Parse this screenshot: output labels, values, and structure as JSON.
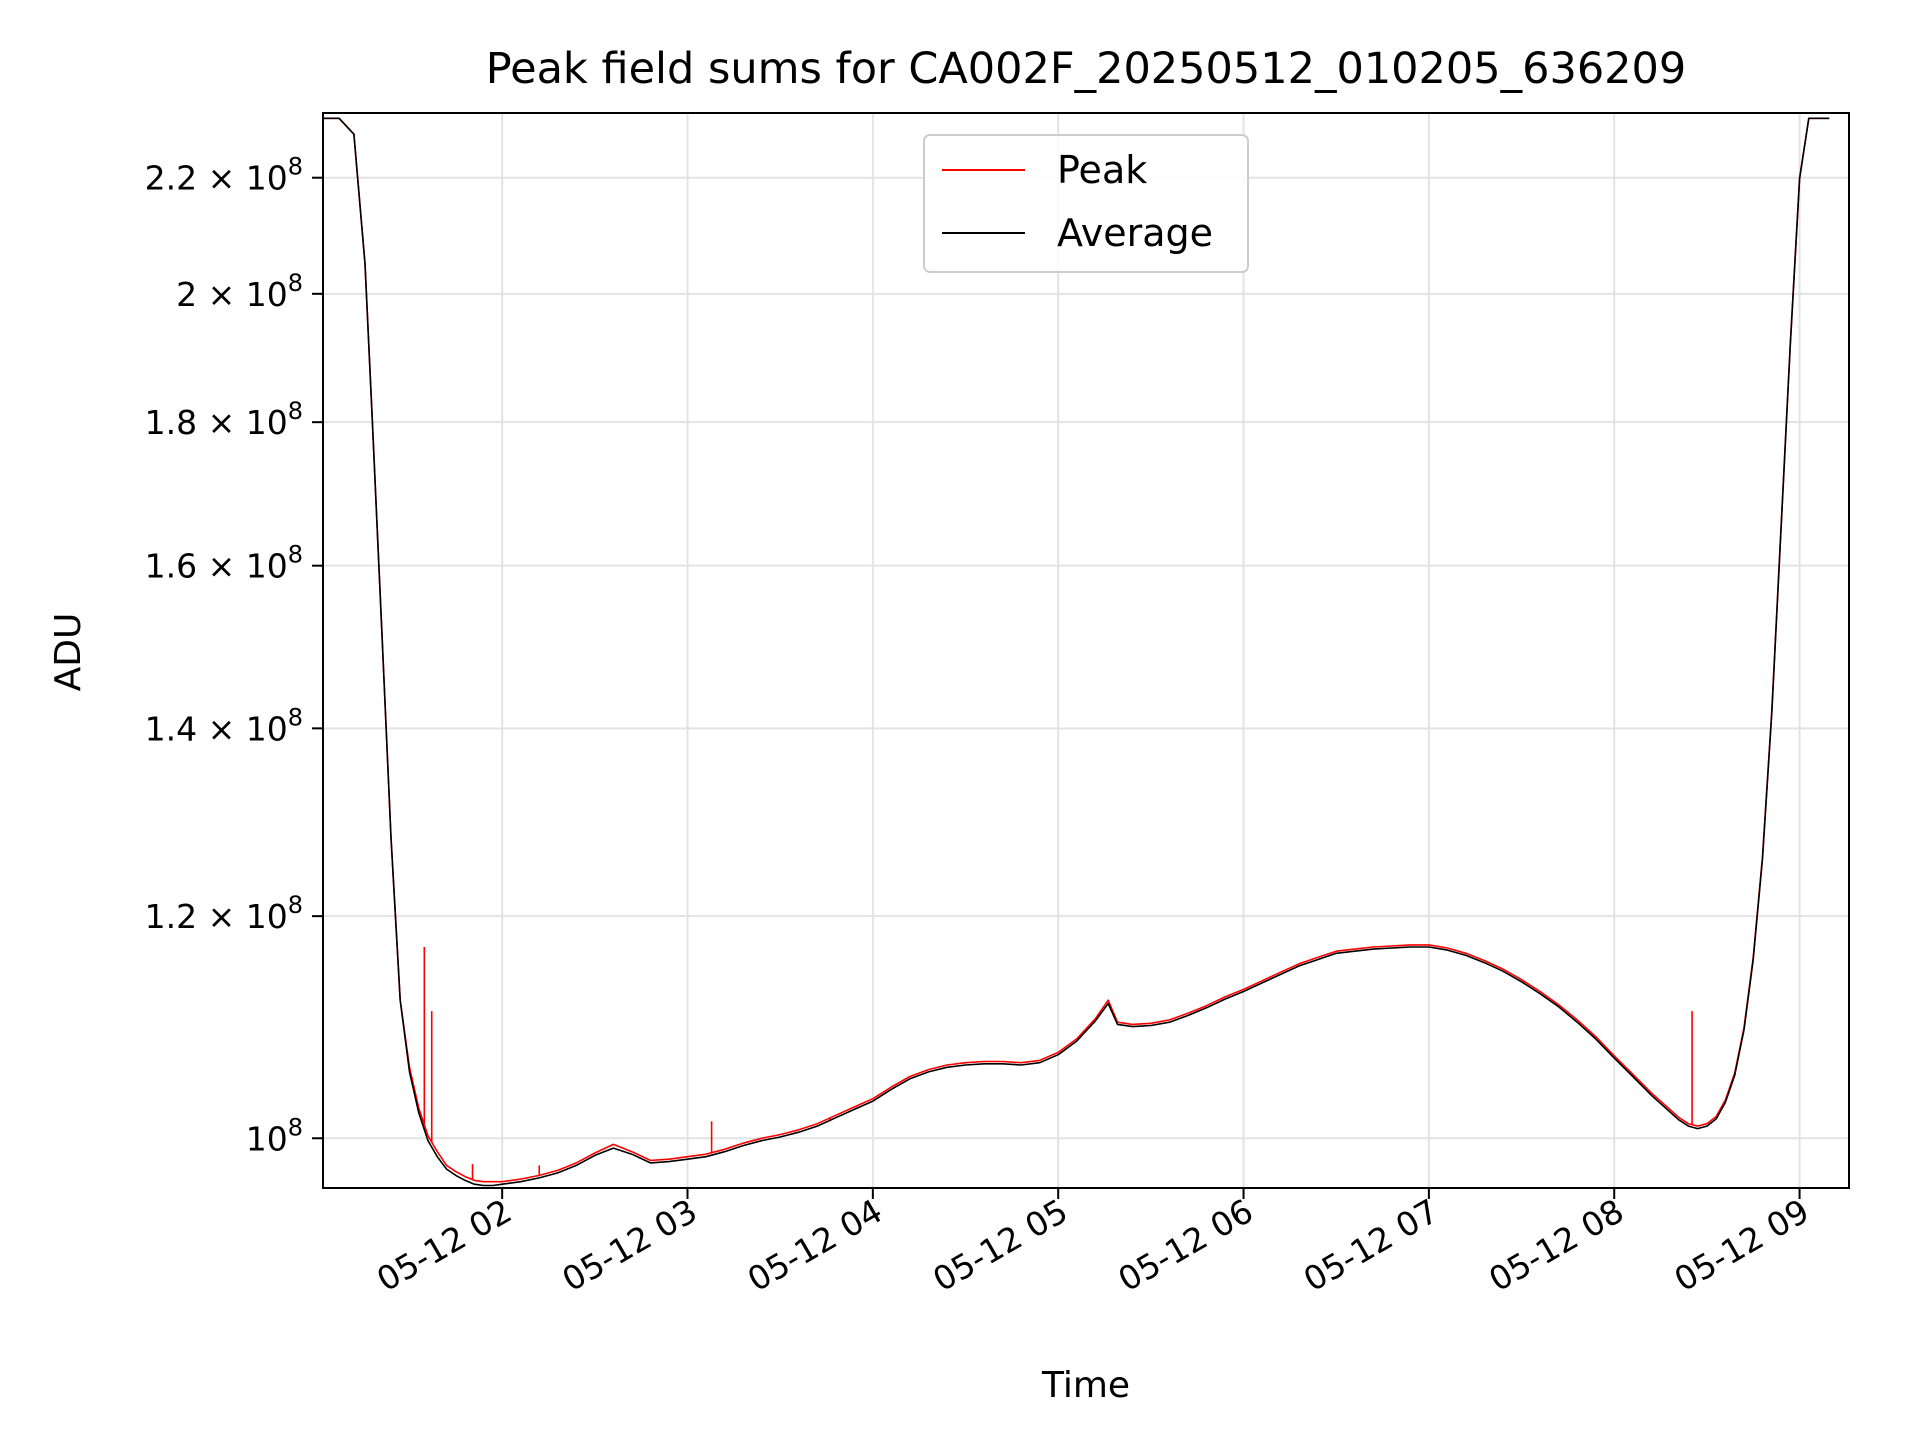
{
  "chart_data": {
    "type": "line",
    "title": "Peak field sums for CA002F_20250512_010205_636209",
    "xlabel": "Time",
    "ylabel": "ADU",
    "y_scale": "log",
    "x_range": [
      "05-12 01:02",
      "05-12 09:16"
    ],
    "ylim": [
      96000000,
      232000000
    ],
    "grid": true,
    "legend_position": "top-center",
    "x_ticks": [
      "05-12 02",
      "05-12 03",
      "05-12 04",
      "05-12 05",
      "05-12 06",
      "05-12 07",
      "05-12 08",
      "05-12 09"
    ],
    "x_tick_hours": [
      2,
      3,
      4,
      5,
      6,
      7,
      8,
      9
    ],
    "y_ticks": [
      {
        "value": 100000000,
        "mantissa": "",
        "exponent": "8",
        "base": "10"
      },
      {
        "value": 120000000,
        "mantissa": "1.2",
        "exponent": "8",
        "base": "10"
      },
      {
        "value": 140000000,
        "mantissa": "1.4",
        "exponent": "8",
        "base": "10"
      },
      {
        "value": 160000000,
        "mantissa": "1.6",
        "exponent": "8",
        "base": "10"
      },
      {
        "value": 180000000,
        "mantissa": "1.8",
        "exponent": "8",
        "base": "10"
      },
      {
        "value": 200000000,
        "mantissa": "2",
        "exponent": "8",
        "base": "10"
      },
      {
        "value": 220000000,
        "mantissa": "2.2",
        "exponent": "8",
        "base": "10"
      }
    ],
    "series": [
      {
        "name": "Peak",
        "color": "#ff0000",
        "x_hours": [
          1.03,
          1.12,
          1.2,
          1.26,
          1.3,
          1.35,
          1.4,
          1.45,
          1.5,
          1.55,
          1.6,
          1.65,
          1.7,
          1.75,
          1.8,
          1.85,
          1.9,
          1.95,
          2.0,
          2.1,
          2.2,
          2.3,
          2.4,
          2.5,
          2.6,
          2.7,
          2.8,
          2.9,
          3.0,
          3.1,
          3.2,
          3.3,
          3.4,
          3.5,
          3.6,
          3.7,
          3.8,
          3.9,
          4.0,
          4.1,
          4.2,
          4.3,
          4.4,
          4.5,
          4.6,
          4.7,
          4.8,
          4.9,
          5.0,
          5.1,
          5.2,
          5.27,
          5.32,
          5.4,
          5.5,
          5.6,
          5.7,
          5.8,
          5.9,
          6.0,
          6.1,
          6.2,
          6.3,
          6.4,
          6.5,
          6.6,
          6.7,
          6.8,
          6.9,
          7.0,
          7.1,
          7.2,
          7.3,
          7.4,
          7.5,
          7.6,
          7.7,
          7.8,
          7.9,
          8.0,
          8.1,
          8.2,
          8.3,
          8.35,
          8.4,
          8.45,
          8.5,
          8.55,
          8.6,
          8.65,
          8.7,
          8.75,
          8.8,
          8.85,
          8.9,
          8.95,
          9.0,
          9.05,
          9.08,
          9.1,
          9.16
        ],
        "values": [
          231000000,
          231000000,
          228000000,
          205000000,
          180000000,
          152000000,
          128000000,
          112000000,
          106000000,
          102500000,
          100200000,
          98900000,
          97800000,
          97300000,
          96900000,
          96600000,
          96500000,
          96500000,
          96500000,
          96700000,
          97000000,
          97400000,
          98000000,
          98800000,
          99500000,
          98900000,
          98200000,
          98300000,
          98500000,
          98700000,
          99100000,
          99600000,
          100000000,
          100300000,
          100700000,
          101200000,
          101900000,
          102600000,
          103300000,
          104300000,
          105200000,
          105800000,
          106200000,
          106400000,
          106500000,
          106500000,
          106400000,
          106600000,
          107300000,
          108500000,
          110300000,
          112000000,
          110000000,
          109800000,
          109900000,
          110200000,
          110800000,
          111500000,
          112300000,
          113000000,
          113800000,
          114600000,
          115400000,
          116000000,
          116600000,
          116800000,
          117000000,
          117100000,
          117200000,
          117200000,
          116900000,
          116400000,
          115700000,
          114900000,
          113900000,
          112800000,
          111600000,
          110200000,
          108700000,
          107000000,
          105400000,
          103800000,
          102400000,
          101700000,
          101200000,
          101000000,
          101200000,
          101800000,
          103200000,
          105500000,
          109500000,
          116000000,
          126000000,
          142000000,
          165000000,
          192000000,
          220000000,
          231000000,
          231000000,
          231000000,
          231000000
        ],
        "spikes": [
          {
            "x_hour": 1.58,
            "value": 117000000
          },
          {
            "x_hour": 1.62,
            "value": 111000000
          },
          {
            "x_hour": 1.84,
            "value": 97900000
          },
          {
            "x_hour": 2.2,
            "value": 97800000
          },
          {
            "x_hour": 3.13,
            "value": 101400000
          },
          {
            "x_hour": 3.77,
            "value": 101400000
          },
          {
            "x_hour": 8.42,
            "value": 111000000
          }
        ]
      },
      {
        "name": "Average",
        "color": "#000000",
        "x_hours": [
          1.03,
          1.12,
          1.2,
          1.26,
          1.3,
          1.35,
          1.4,
          1.45,
          1.5,
          1.55,
          1.6,
          1.65,
          1.7,
          1.75,
          1.8,
          1.85,
          1.9,
          1.95,
          2.0,
          2.1,
          2.2,
          2.3,
          2.4,
          2.5,
          2.6,
          2.7,
          2.8,
          2.9,
          3.0,
          3.1,
          3.2,
          3.3,
          3.4,
          3.5,
          3.6,
          3.7,
          3.8,
          3.9,
          4.0,
          4.1,
          4.2,
          4.3,
          4.4,
          4.5,
          4.6,
          4.7,
          4.8,
          4.9,
          5.0,
          5.1,
          5.2,
          5.27,
          5.32,
          5.4,
          5.5,
          5.6,
          5.7,
          5.8,
          5.9,
          6.0,
          6.1,
          6.2,
          6.3,
          6.4,
          6.5,
          6.6,
          6.7,
          6.8,
          6.9,
          7.0,
          7.1,
          7.2,
          7.3,
          7.4,
          7.5,
          7.6,
          7.7,
          7.8,
          7.9,
          8.0,
          8.1,
          8.2,
          8.3,
          8.35,
          8.4,
          8.45,
          8.5,
          8.55,
          8.6,
          8.65,
          8.7,
          8.75,
          8.8,
          8.85,
          8.9,
          8.95,
          9.0,
          9.05,
          9.08,
          9.1,
          9.16
        ],
        "values": [
          231000000,
          231000000,
          228000000,
          205000000,
          180000000,
          152000000,
          128000000,
          112000000,
          105600000,
          102100000,
          99800000,
          98500000,
          97500000,
          97000000,
          96600000,
          96300000,
          96200000,
          96200000,
          96300000,
          96500000,
          96800000,
          97200000,
          97800000,
          98600000,
          99200000,
          98700000,
          98000000,
          98100000,
          98300000,
          98500000,
          98900000,
          99400000,
          99800000,
          100100000,
          100500000,
          101000000,
          101700000,
          102400000,
          103100000,
          104100000,
          105000000,
          105600000,
          106000000,
          106200000,
          106300000,
          106300000,
          106200000,
          106400000,
          107100000,
          108300000,
          110100000,
          111700000,
          109800000,
          109600000,
          109700000,
          110000000,
          110600000,
          111300000,
          112100000,
          112800000,
          113600000,
          114400000,
          115200000,
          115800000,
          116400000,
          116600000,
          116800000,
          116900000,
          117000000,
          117000000,
          116700000,
          116200000,
          115500000,
          114700000,
          113700000,
          112600000,
          111400000,
          110000000,
          108500000,
          106800000,
          105200000,
          103600000,
          102200000,
          101500000,
          101000000,
          100800000,
          101000000,
          101600000,
          103000000,
          105300000,
          109300000,
          115800000,
          125800000,
          141800000,
          164800000,
          191800000,
          219800000,
          231000000,
          231000000,
          231000000,
          231000000
        ]
      }
    ]
  }
}
